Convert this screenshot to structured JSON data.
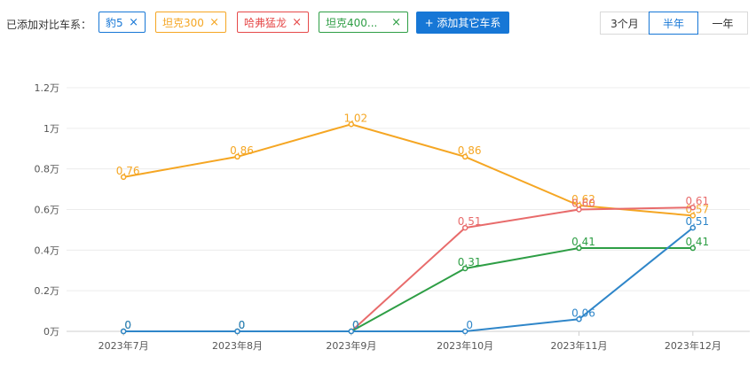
{
  "toolbar": {
    "compare_label": "已添加对比车系：",
    "tags": [
      {
        "label": "豹5",
        "color": "#1777d6"
      },
      {
        "label": "坦克300",
        "color": "#f5a623"
      },
      {
        "label": "哈弗猛龙",
        "color": "#e64a4a"
      },
      {
        "label": "坦克400...",
        "color": "#2e9e45"
      }
    ],
    "close_glyph": "×",
    "add_button": "+ 添加其它车系",
    "periods": [
      "3个月",
      "半年",
      "一年"
    ],
    "active_period": "半年"
  },
  "chart_data": {
    "type": "line",
    "categories": [
      "2023年7月",
      "2023年8月",
      "2023年9月",
      "2023年10月",
      "2023年11月",
      "2023年12月"
    ],
    "y_ticks": [
      "0万",
      "0.2万",
      "0.4万",
      "0.6万",
      "0.8万",
      "1万",
      "1.2万"
    ],
    "ylim": [
      0,
      1.2
    ],
    "grid": true,
    "series": [
      {
        "name": "坦克300",
        "color": "#f5a623",
        "values": [
          0.76,
          0.86,
          1.02,
          0.86,
          0.62,
          0.57
        ],
        "labels": [
          "0.76",
          "0.86",
          "1.02",
          "0.86",
          "0.62",
          "0.57"
        ]
      },
      {
        "name": "哈弗猛龙",
        "color": "#e86b6b",
        "values": [
          0,
          0,
          0,
          0.51,
          0.6,
          0.61
        ],
        "labels": [
          "0",
          "0",
          "0",
          "0.51",
          "0.60",
          "0.61"
        ]
      },
      {
        "name": "坦克400...",
        "color": "#2e9e45",
        "values": [
          0,
          0,
          0,
          0.31,
          0.41,
          0.41
        ],
        "labels": [
          "0",
          "0",
          "0",
          "0.31",
          "0.41",
          "0.41"
        ]
      },
      {
        "name": "豹5",
        "color": "#2f86c9",
        "values": [
          0,
          0,
          0,
          0,
          0.06,
          0.51
        ],
        "labels": [
          "0",
          "0",
          "0",
          "0",
          "0.06",
          "0.51"
        ]
      }
    ]
  }
}
